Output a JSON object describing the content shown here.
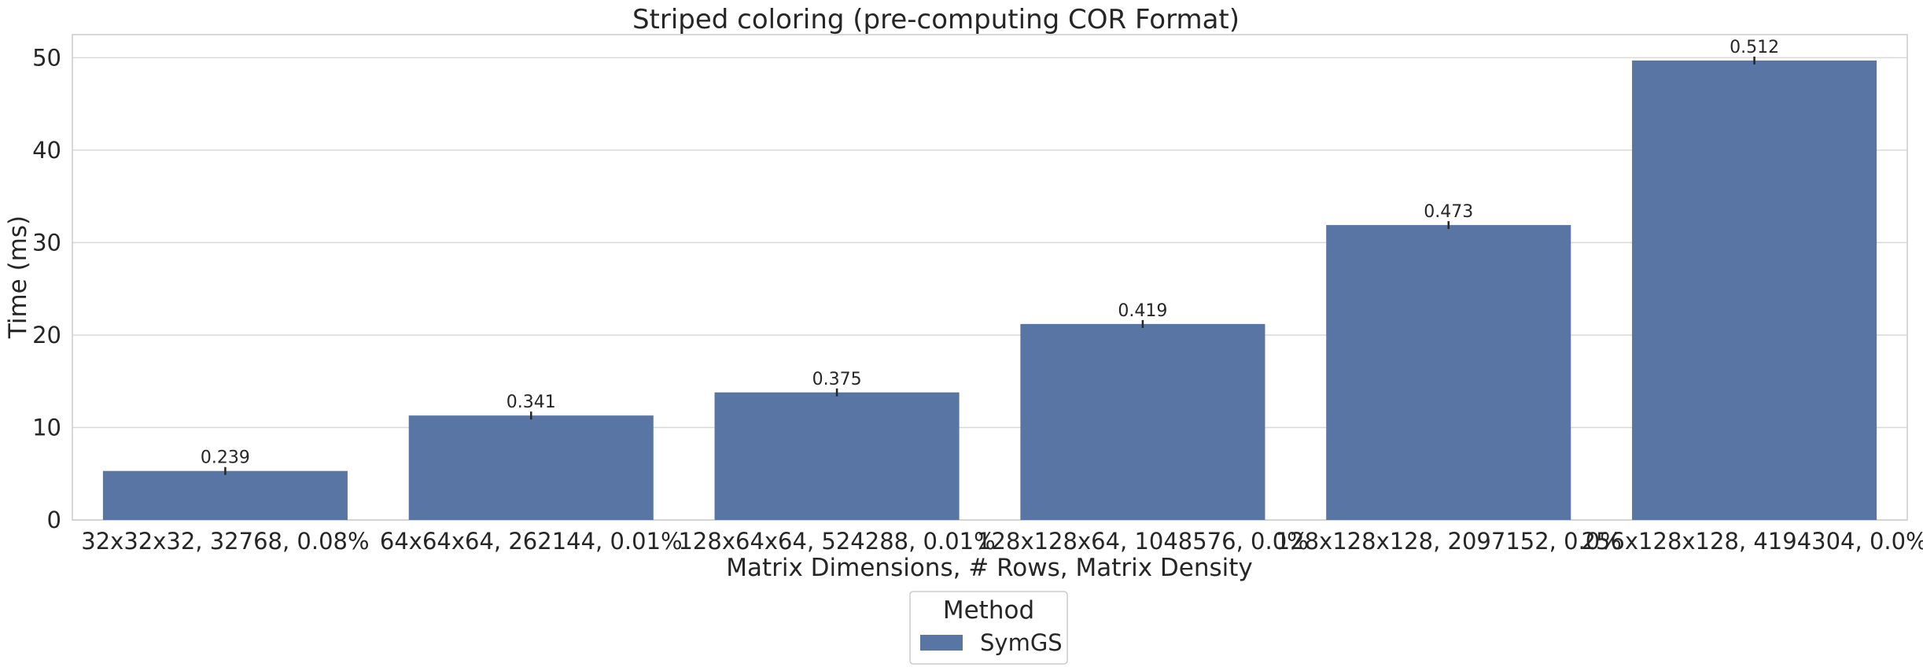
{
  "chart_data": {
    "type": "bar",
    "title": "Striped coloring (pre-computing COR Format)",
    "xlabel": "Matrix Dimensions, # Rows, Matrix Density",
    "ylabel": "Time (ms)",
    "categories": [
      "32x32x32, 32768, 0.08%",
      "64x64x64, 262144, 0.01%",
      "128x64x64, 524288, 0.01%",
      "128x128x64, 1048576, 0.0%",
      "128x128x128, 2097152, 0.0%",
      "256x128x128, 4194304, 0.0%"
    ],
    "series": [
      {
        "name": "SymGS",
        "values": [
          5.3,
          11.3,
          13.8,
          21.2,
          31.9,
          49.7
        ],
        "data_labels": [
          "0.239",
          "0.341",
          "0.375",
          "0.419",
          "0.473",
          "0.512"
        ],
        "color": "#5875a4"
      }
    ],
    "ylim": [
      0,
      52.5
    ],
    "yticks": [
      0,
      10,
      20,
      30,
      40,
      50
    ],
    "grid": true,
    "legend": {
      "title": "Method",
      "placement": "bottom-center"
    }
  }
}
